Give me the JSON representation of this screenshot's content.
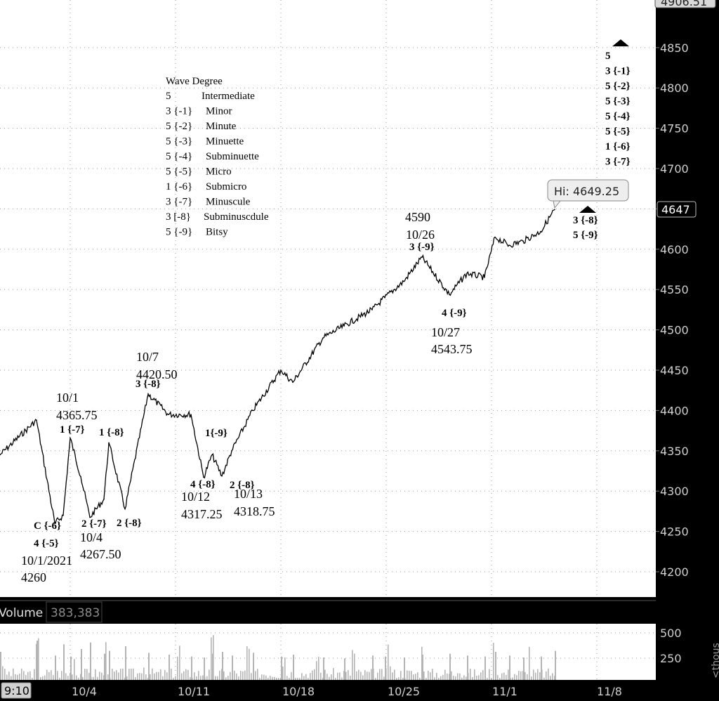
{
  "colors": {
    "plot_bg": "#ffffff",
    "frame_bg": "#000000",
    "price_line": "#000000",
    "volume_bar": "#b4b4b4",
    "grid": "#9a9a9a",
    "axis_text": "#d0d0d0",
    "annotation_text": "#000000"
  },
  "price_axis": {
    "labels": [
      "4200",
      "4250",
      "4300",
      "4350",
      "4400",
      "4450",
      "4500",
      "4550",
      "4600",
      "4650",
      "4700",
      "4750",
      "4800",
      "4850"
    ],
    "values": [
      4200,
      4250,
      4300,
      4350,
      4400,
      4450,
      4500,
      4550,
      4600,
      4650,
      4700,
      4750,
      4800,
      4850
    ],
    "top_label": "4906.51",
    "current_label": "4647"
  },
  "time_axis": {
    "start_label": "9:10",
    "labels": [
      "10/4",
      "10/11",
      "10/18",
      "10/25",
      "11/1",
      "11/8"
    ]
  },
  "hi_callout": "Hi: 4649.25",
  "volume": {
    "title": "Volume",
    "value": "383,383",
    "axis_labels": [
      "500",
      "250"
    ],
    "unit_label": "<thous"
  },
  "legend": {
    "title": "Wave Degree",
    "rows": [
      {
        "code": "5",
        "name": "Intermediate"
      },
      {
        "code": "3 {-1}",
        "name": "Minor"
      },
      {
        "code": "5 {-2}",
        "name": "Minute"
      },
      {
        "code": "5 {-3}",
        "name": "Minuette"
      },
      {
        "code": "5 {-4}",
        "name": "Subminuette"
      },
      {
        "code": "5 {-5}",
        "name": "Micro"
      },
      {
        "code": "1 {-6}",
        "name": "Submicro"
      },
      {
        "code": "3 {-7}",
        "name": "Minuscule"
      },
      {
        "code": "3 [-8}",
        "name": "Subminuscdule"
      },
      {
        "code": "5 {-9}",
        "name": "Bitsy"
      }
    ]
  },
  "right_wave_stack": [
    "5",
    "3 {-1}",
    "5 {-2}",
    "5 {-3}",
    "5 {-4}",
    "5 {-5}",
    "1 {-6}",
    "3 {-7}"
  ],
  "right_wave_stack_low": [
    "3 {-8}",
    "5 {-9}"
  ],
  "annotations": [
    {
      "id": "a1",
      "lines": [
        "10/1",
        "4365.75"
      ],
      "wave": "1 {-7}"
    },
    {
      "id": "a2",
      "lines": [],
      "wave": "1 {-8}"
    },
    {
      "id": "a3",
      "lines": [
        "10/7",
        "4420.50"
      ],
      "wave": "3 {-8}"
    },
    {
      "id": "a4",
      "lines": [],
      "wave": "1{-9}"
    },
    {
      "id": "a5",
      "lines": [
        "10/12",
        "4317.25"
      ],
      "wave": "4 {-8}"
    },
    {
      "id": "a6",
      "lines": [
        "10/13",
        "4318.75"
      ],
      "wave": "2 {-8}"
    },
    {
      "id": "a7",
      "lines": [
        "4590",
        "10/26"
      ],
      "wave": "3 {-9}"
    },
    {
      "id": "a8",
      "lines": [
        "10/27",
        "4543.75"
      ],
      "wave": "4 {-9}"
    },
    {
      "id": "a9",
      "lines": [
        "10/4",
        "4267.50"
      ],
      "wave": "2 {-7}"
    },
    {
      "id": "a10",
      "lines": [],
      "wave": "2 {-8}"
    },
    {
      "id": "a11",
      "lines": [
        "10/1/2021",
        "4260"
      ],
      "wave": "C {-6}",
      "wave2": "4 {-5}"
    }
  ],
  "chart_data": {
    "type": "line",
    "title": "",
    "ylim": [
      4160,
      4906.51
    ],
    "x_ticks": [
      "10/4",
      "10/11",
      "10/18",
      "10/25",
      "11/1",
      "11/8"
    ],
    "series": [
      {
        "x": [
          "9/29",
          "9/30",
          "10/1",
          "10/1",
          "10/1",
          "10/4",
          "10/4",
          "10/5",
          "10/6",
          "10/6",
          "10/7",
          "10/8",
          "10/11",
          "10/12",
          "10/12",
          "10/13",
          "10/13",
          "10/14",
          "10/15",
          "10/18",
          "10/19",
          "10/20",
          "10/21",
          "10/22",
          "10/25",
          "10/26",
          "10/27",
          "10/28",
          "10/29",
          "11/1",
          "11/2",
          "11/3",
          "11/4",
          "11/5"
        ],
        "values": [
          4345,
          4388,
          4260,
          4270,
          4365.75,
          4318,
          4267.5,
          4290,
          4360,
          4278,
          4420.5,
          4395,
          4395,
          4317.25,
          4345,
          4318.75,
          4350,
          4400,
          4450,
          4435,
          4490,
          4505,
          4525,
          4540,
          4560,
          4590,
          4543.75,
          4570,
          4565,
          4615,
          4605,
          4610,
          4622,
          4649.25
        ]
      }
    ],
    "volume": [
      300,
      420,
      260,
      380,
      250,
      330,
      400,
      280,
      310,
      360,
      290,
      270,
      250,
      240,
      280,
      300,
      260,
      290,
      250,
      270,
      240,
      230,
      260,
      250,
      240,
      270,
      280,
      260,
      250,
      300,
      260,
      240,
      250,
      310
    ]
  }
}
